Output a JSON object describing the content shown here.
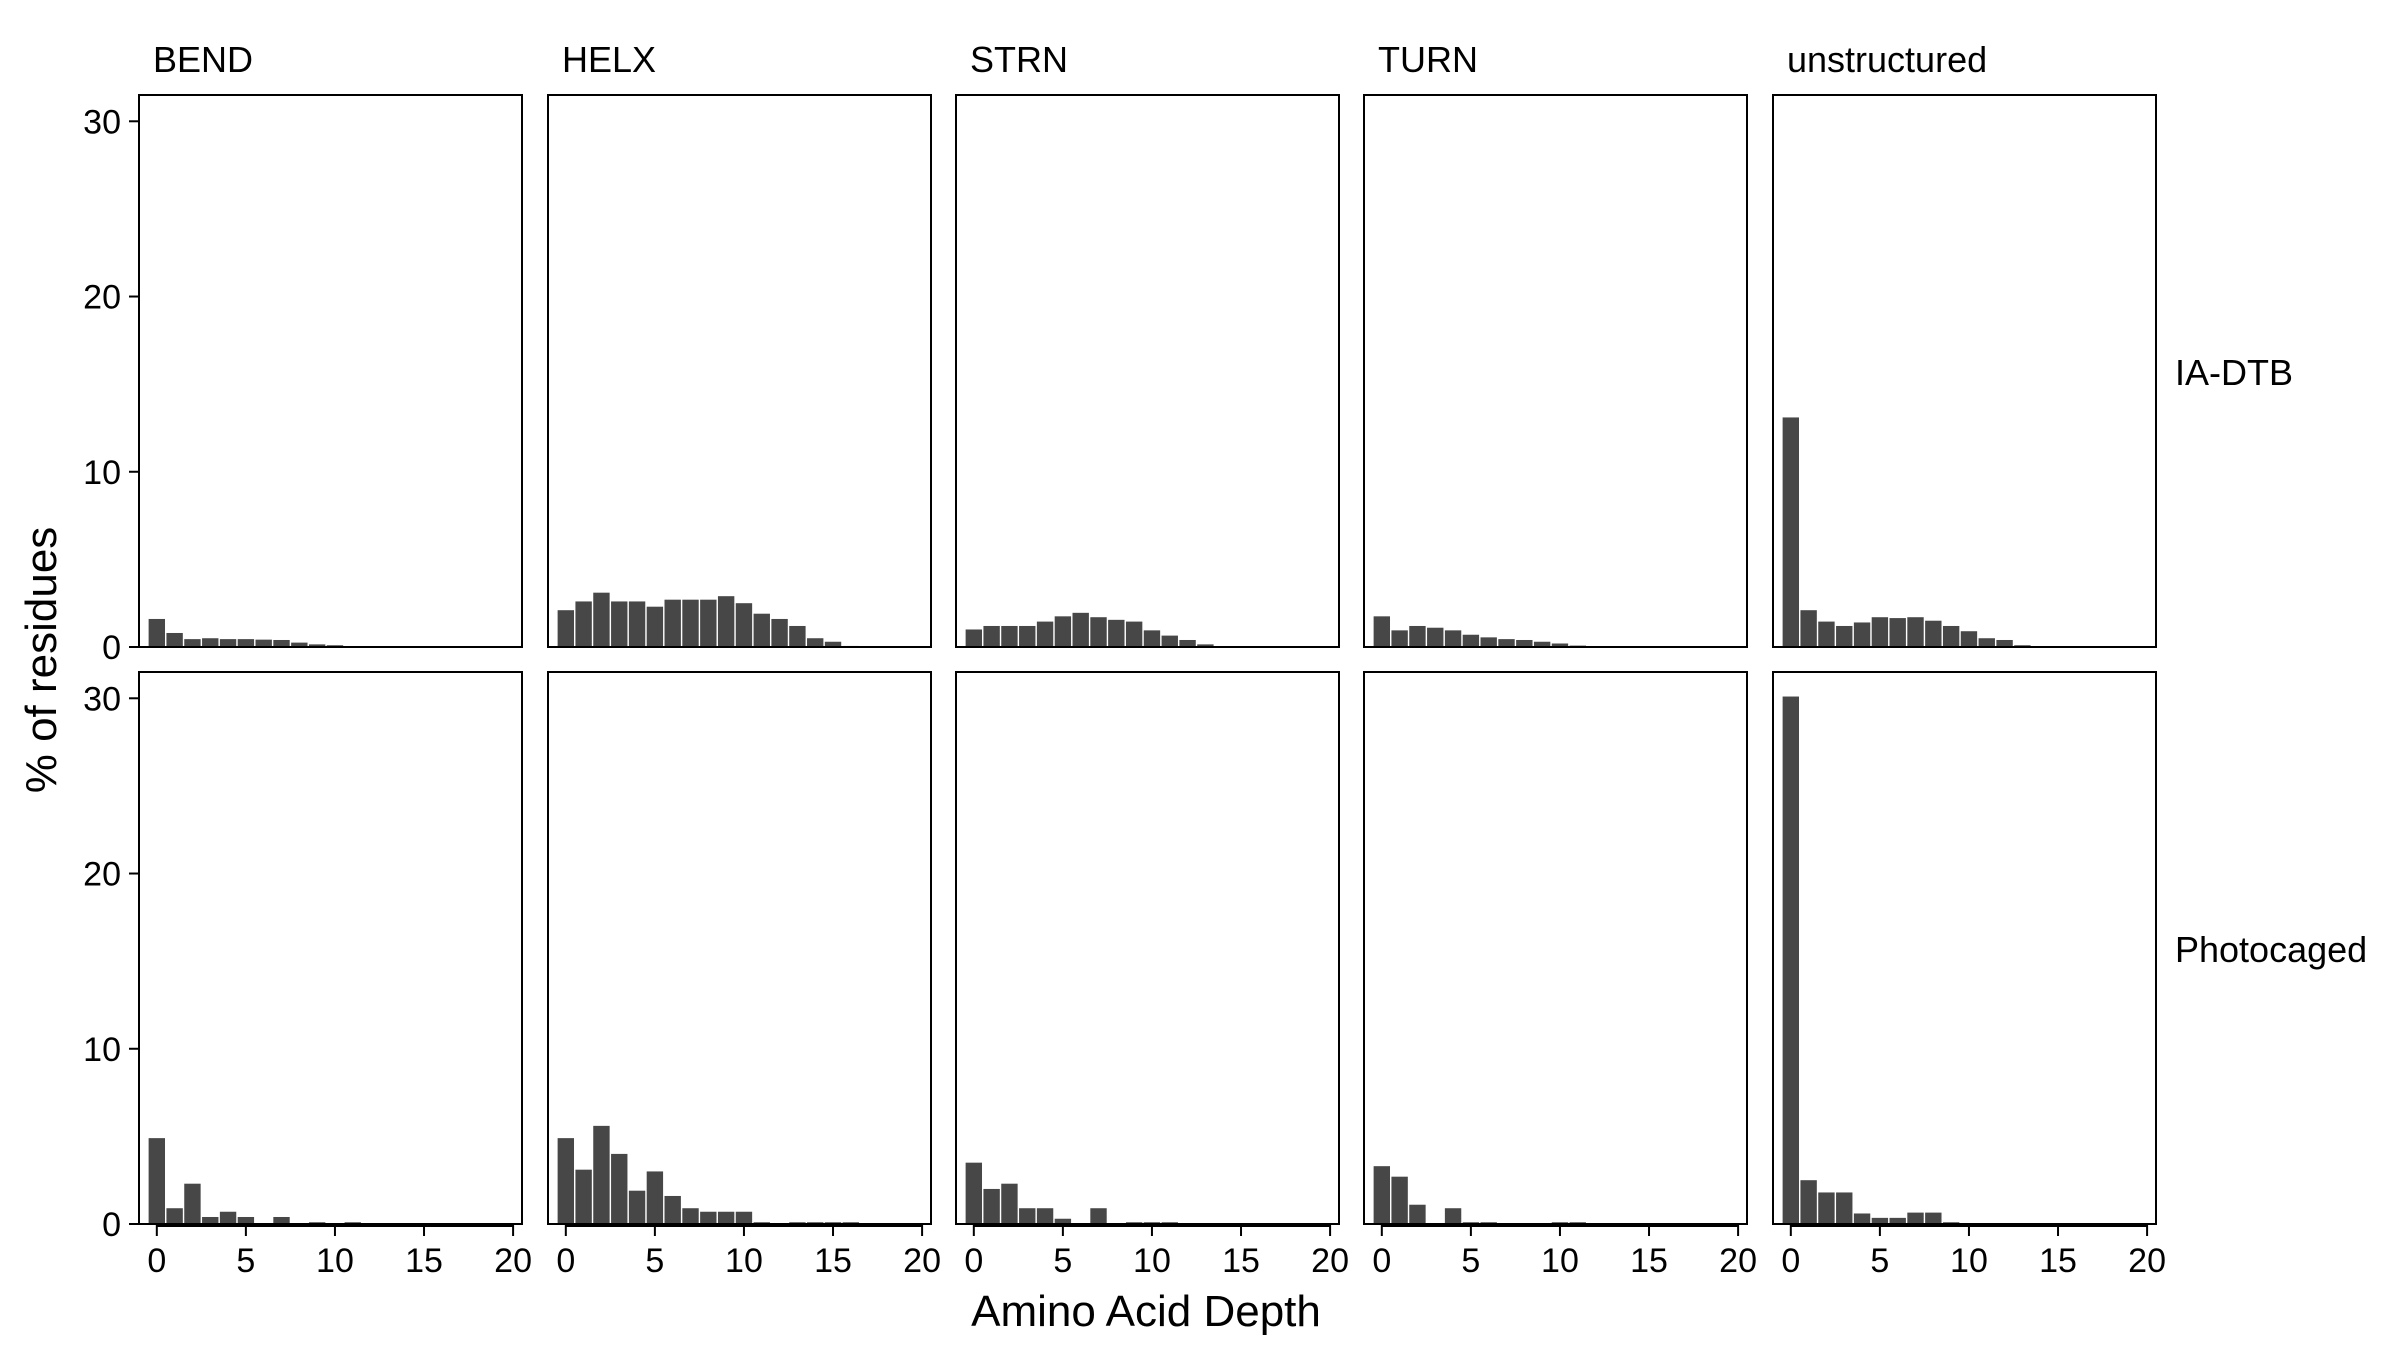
{
  "chart_data": {
    "type": "bar",
    "layout": "facet-grid",
    "xlabel": "Amino Acid Depth",
    "ylabel": "% of residues",
    "xlim": [
      -1,
      20.5
    ],
    "ylim": [
      0,
      31.5
    ],
    "x_ticks": [
      0,
      5,
      10,
      15,
      20
    ],
    "y_ticks": [
      0,
      10,
      20,
      30
    ],
    "bar_color": "#474747",
    "columns": [
      "BEND",
      "HELX",
      "STRN",
      "TURN",
      "unstructured"
    ],
    "rows": [
      "IA-DTB",
      "Photocaged"
    ],
    "x": [
      0,
      1,
      2,
      3,
      4,
      5,
      6,
      7,
      8,
      9,
      10,
      11,
      12,
      13,
      14,
      15,
      16,
      17,
      18,
      19,
      20
    ],
    "panels": [
      {
        "col": "BEND",
        "row": "IA-DTB",
        "values": [
          1.6,
          0.8,
          0.45,
          0.5,
          0.45,
          0.45,
          0.42,
          0.4,
          0.25,
          0.15,
          0.1,
          0.05,
          0.03,
          0.02,
          0.01,
          0.01,
          0.01,
          0,
          0,
          0,
          0
        ]
      },
      {
        "col": "HELX",
        "row": "IA-DTB",
        "values": [
          2.1,
          2.6,
          3.1,
          2.6,
          2.6,
          2.3,
          2.7,
          2.7,
          2.7,
          2.9,
          2.5,
          1.9,
          1.6,
          1.2,
          0.5,
          0.3,
          0.06,
          0.04,
          0.03,
          0.02,
          0
        ]
      },
      {
        "col": "STRN",
        "row": "IA-DTB",
        "values": [
          1.0,
          1.2,
          1.2,
          1.2,
          1.45,
          1.75,
          1.95,
          1.7,
          1.55,
          1.45,
          0.95,
          0.65,
          0.4,
          0.15,
          0.05,
          0.03,
          0.02,
          0.01,
          0,
          0,
          0
        ]
      },
      {
        "col": "TURN",
        "row": "IA-DTB",
        "values": [
          1.75,
          0.95,
          1.2,
          1.1,
          0.95,
          0.7,
          0.55,
          0.45,
          0.4,
          0.3,
          0.2,
          0.08,
          0.05,
          0.03,
          0.01,
          0.01,
          0,
          0,
          0,
          0,
          0
        ]
      },
      {
        "col": "unstructured",
        "row": "IA-DTB",
        "values": [
          13.1,
          2.1,
          1.45,
          1.2,
          1.4,
          1.7,
          1.65,
          1.7,
          1.5,
          1.2,
          0.9,
          0.5,
          0.4,
          0.1,
          0.05,
          0.03,
          0.02,
          0.01,
          0,
          0,
          0
        ]
      },
      {
        "col": "BEND",
        "row": "Photocaged",
        "values": [
          4.9,
          0.9,
          2.3,
          0.4,
          0.7,
          0.4,
          0,
          0.4,
          0,
          0.1,
          0,
          0.1,
          0,
          0,
          0,
          0,
          0,
          0,
          0,
          0,
          0
        ]
      },
      {
        "col": "HELX",
        "row": "Photocaged",
        "values": [
          4.9,
          3.1,
          5.6,
          4.0,
          1.9,
          3.0,
          1.6,
          0.9,
          0.7,
          0.7,
          0.7,
          0.1,
          0,
          0.1,
          0.1,
          0.1,
          0.1,
          0,
          0,
          0,
          0
        ]
      },
      {
        "col": "STRN",
        "row": "Photocaged",
        "values": [
          3.5,
          2.0,
          2.3,
          0.9,
          0.9,
          0.3,
          0,
          0.9,
          0,
          0.1,
          0.1,
          0.1,
          0,
          0,
          0,
          0,
          0,
          0,
          0,
          0,
          0
        ]
      },
      {
        "col": "TURN",
        "row": "Photocaged",
        "values": [
          3.3,
          2.7,
          1.1,
          0,
          0.9,
          0.1,
          0.1,
          0,
          0,
          0,
          0.1,
          0.1,
          0,
          0,
          0,
          0,
          0,
          0,
          0,
          0,
          0
        ]
      },
      {
        "col": "unstructured",
        "row": "Photocaged",
        "values": [
          30.1,
          2.5,
          1.8,
          1.8,
          0.6,
          0.35,
          0.35,
          0.65,
          0.65,
          0.1,
          0,
          0,
          0,
          0,
          0,
          0,
          0,
          0,
          0,
          0,
          0
        ]
      }
    ]
  }
}
